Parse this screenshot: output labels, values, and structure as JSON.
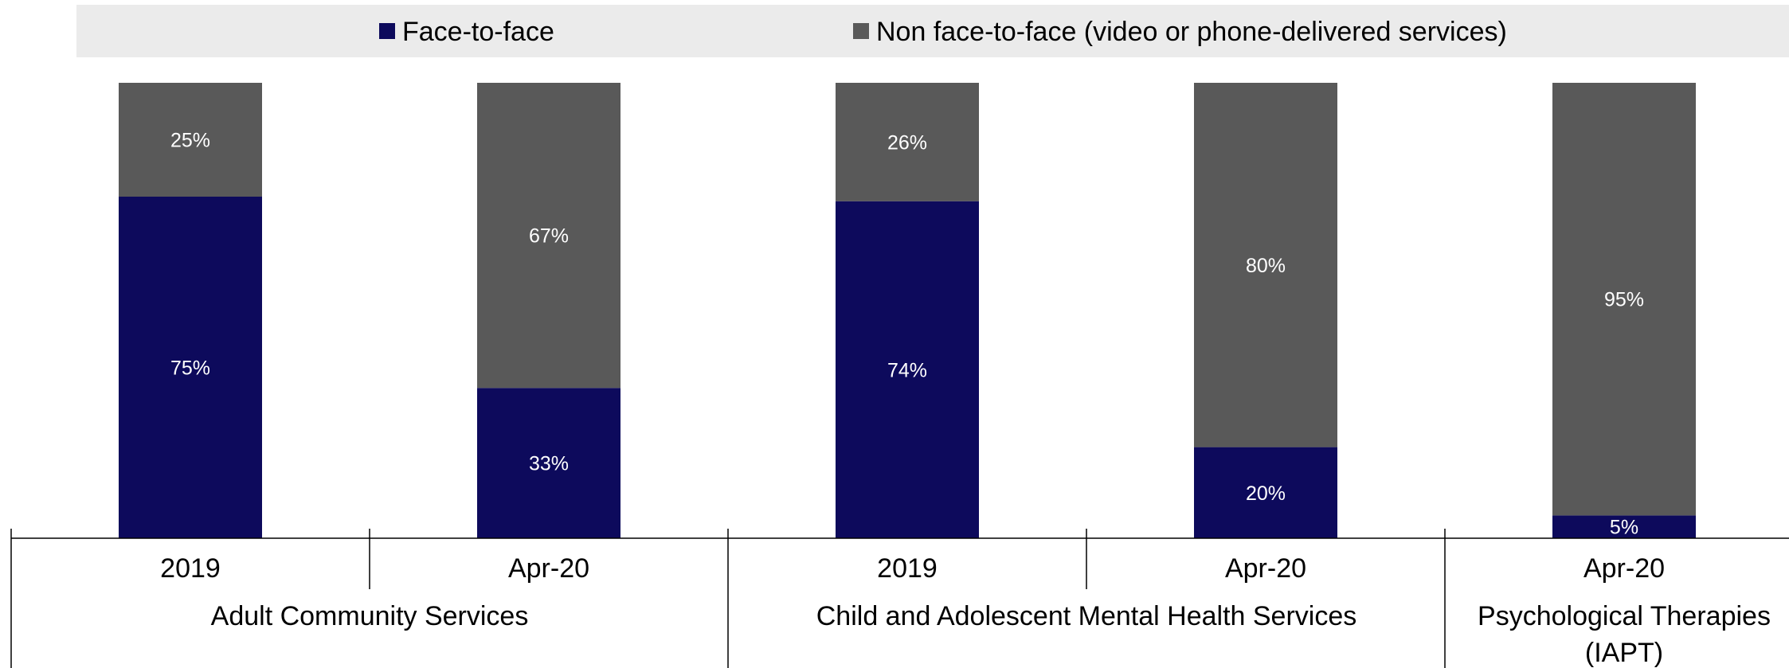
{
  "chart_data": {
    "type": "bar",
    "stacked": true,
    "normalized_percent": true,
    "legend_position": "top",
    "grid": false,
    "ylim": [
      0,
      100
    ],
    "categories": [
      {
        "label": "2019",
        "group": "Adult Community Services"
      },
      {
        "label": "Apr-20",
        "group": "Adult Community Services"
      },
      {
        "label": "2019",
        "group": "Child and Adolescent Mental Health Services"
      },
      {
        "label": "Apr-20",
        "group": "Child and Adolescent Mental Health Services"
      },
      {
        "label": "Apr-20",
        "group": "Psychological Therapies (IAPT)"
      }
    ],
    "groups": [
      {
        "lines": [
          "Adult Community Services"
        ]
      },
      {
        "lines": [
          "Child and Adolescent Mental Health Services"
        ]
      },
      {
        "lines": [
          "Psychological Therapies",
          "(IAPT)"
        ]
      }
    ],
    "series": [
      {
        "name": "Face-to-face",
        "color": "#0d0a5c",
        "values": [
          75,
          33,
          74,
          20,
          5
        ],
        "labels": [
          "75%",
          "33%",
          "74%",
          "20%",
          "5%"
        ]
      },
      {
        "name": "Non face-to-face (video or phone-delivered services)",
        "color": "#595959",
        "values": [
          25,
          67,
          26,
          80,
          95
        ],
        "labels": [
          "25%",
          "67%",
          "26%",
          "80%",
          "95%"
        ]
      }
    ]
  }
}
